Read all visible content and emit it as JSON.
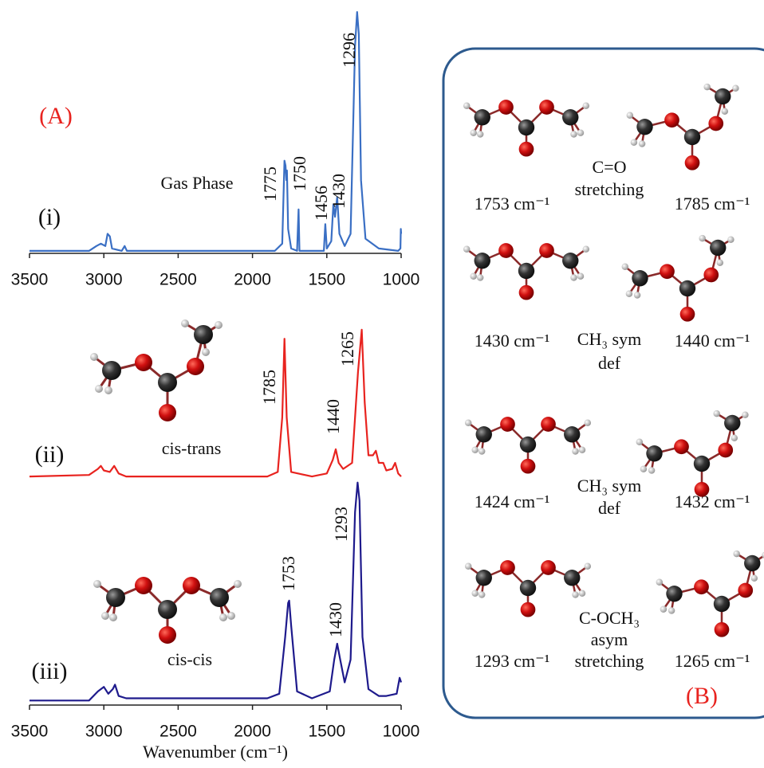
{
  "figure_label": "(A)",
  "chart_data": [
    {
      "type": "line",
      "label": "(i)",
      "annotation": "Gas Phase",
      "color": "#3a6fc4",
      "xlim": [
        3500,
        1000
      ],
      "ylim": [
        0,
        1
      ],
      "xticks": [
        3500,
        3000,
        2500,
        2000,
        1500,
        1000
      ],
      "peak_labels": [
        1775,
        1750,
        1456,
        1430,
        1296
      ],
      "x": [
        3500,
        3100,
        3050,
        3020,
        2990,
        2975,
        2960,
        2945,
        2880,
        2860,
        2845,
        2200,
        2000,
        1850,
        1800,
        1785,
        1778,
        1772,
        1768,
        1760,
        1740,
        1700,
        1690,
        1684,
        1520,
        1510,
        1500,
        1470,
        1456,
        1445,
        1430,
        1415,
        1380,
        1340,
        1310,
        1296,
        1285,
        1270,
        1240,
        1150,
        1020,
        1005,
        1002,
        1000
      ],
      "values": [
        0.01,
        0.01,
        0.03,
        0.04,
        0.03,
        0.08,
        0.07,
        0.02,
        0.01,
        0.03,
        0.01,
        0.01,
        0.01,
        0.01,
        0.04,
        0.38,
        0.36,
        0.3,
        0.34,
        0.1,
        0.02,
        0.01,
        0.18,
        0.01,
        0.01,
        0.12,
        0.02,
        0.05,
        0.2,
        0.15,
        0.23,
        0.08,
        0.03,
        0.08,
        0.85,
        0.99,
        0.9,
        0.3,
        0.06,
        0.02,
        0.01,
        0.02,
        0.1,
        0.08
      ]
    },
    {
      "type": "line",
      "label": "(ii)",
      "annotation": "cis-trans",
      "color": "#e8231f",
      "xlim": [
        3500,
        1000
      ],
      "ylim": [
        0,
        1
      ],
      "peak_labels": [
        1785,
        1440,
        1265
      ],
      "x": [
        3500,
        3100,
        3040,
        3020,
        3000,
        2960,
        2930,
        2900,
        2850,
        1900,
        1830,
        1800,
        1785,
        1770,
        1740,
        1600,
        1500,
        1460,
        1440,
        1420,
        1390,
        1330,
        1290,
        1265,
        1245,
        1220,
        1190,
        1170,
        1150,
        1120,
        1100,
        1060,
        1040,
        1020,
        1000
      ],
      "values": [
        0.01,
        0.02,
        0.06,
        0.08,
        0.05,
        0.04,
        0.08,
        0.03,
        0.01,
        0.01,
        0.04,
        0.4,
        0.92,
        0.4,
        0.04,
        0.01,
        0.03,
        0.12,
        0.19,
        0.1,
        0.06,
        0.1,
        0.7,
        0.98,
        0.5,
        0.15,
        0.15,
        0.18,
        0.1,
        0.1,
        0.05,
        0.06,
        0.1,
        0.03,
        0.01
      ]
    },
    {
      "type": "line",
      "label": "(iii)",
      "annotation": "cis-cis",
      "color": "#1e1a8c",
      "xlim": [
        3500,
        1000
      ],
      "ylim": [
        0,
        1
      ],
      "xticks": [
        3500,
        3000,
        2500,
        2000,
        1500,
        1000
      ],
      "xlabel": "Wavenumber (cm⁻¹)",
      "peak_labels": [
        1753,
        1430,
        1293
      ],
      "x": [
        3500,
        3100,
        3040,
        3000,
        2970,
        2940,
        2925,
        2900,
        2850,
        1900,
        1820,
        1780,
        1760,
        1753,
        1740,
        1700,
        1600,
        1480,
        1450,
        1430,
        1410,
        1380,
        1340,
        1310,
        1293,
        1280,
        1260,
        1220,
        1150,
        1100,
        1030,
        1010,
        1000
      ],
      "values": [
        0.02,
        0.02,
        0.06,
        0.08,
        0.05,
        0.07,
        0.09,
        0.04,
        0.03,
        0.03,
        0.05,
        0.3,
        0.45,
        0.46,
        0.35,
        0.06,
        0.03,
        0.06,
        0.2,
        0.27,
        0.2,
        0.1,
        0.2,
        0.85,
        0.98,
        0.9,
        0.3,
        0.07,
        0.04,
        0.04,
        0.05,
        0.12,
        0.1
      ]
    }
  ],
  "panel_b": {
    "label": "(B)",
    "rows": [
      {
        "left": "1753 cm⁻¹",
        "mode": [
          "C=O",
          "stretching"
        ],
        "right": "1785 cm⁻¹"
      },
      {
        "left": "1430 cm⁻¹",
        "mode": [
          "CH₃ sym",
          "def"
        ],
        "right": "1440 cm⁻¹"
      },
      {
        "left": "1424 cm⁻¹",
        "mode": [
          "CH₃ sym",
          "def"
        ],
        "right": "1432 cm⁻¹"
      },
      {
        "left": "1293 cm⁻¹",
        "mode": [
          "C-OCH₃",
          "asym",
          "stretching"
        ],
        "right": "1265 cm⁻¹"
      }
    ]
  }
}
